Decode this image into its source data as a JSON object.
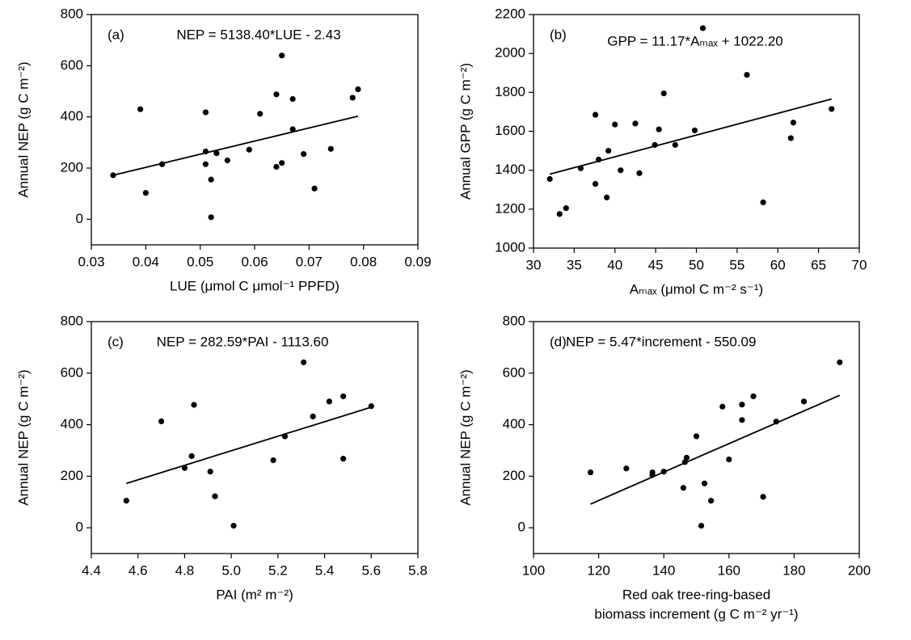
{
  "chart_data": [
    {
      "type": "scatter",
      "panel_label": "(a)",
      "equation": "NEP = 5138.40*LUE - 2.43",
      "xlabel": [
        "LUE (μmol C μmol⁻¹ PPFD)"
      ],
      "ylabel": "Annual NEP (g C m⁻²)",
      "xlim": [
        0.03,
        0.09
      ],
      "xticks": [
        0.03,
        0.04,
        0.05,
        0.06,
        0.07,
        0.08,
        0.09
      ],
      "ylim": [
        -100,
        800
      ],
      "yticks": [
        0,
        200,
        400,
        600,
        800
      ],
      "color": "#000000",
      "x": [
        0.034,
        0.039,
        0.04,
        0.043,
        0.051,
        0.051,
        0.051,
        0.052,
        0.052,
        0.053,
        0.055,
        0.059,
        0.061,
        0.064,
        0.064,
        0.065,
        0.065,
        0.067,
        0.067,
        0.069,
        0.071,
        0.074,
        0.078,
        0.079
      ],
      "values": [
        172,
        430,
        103,
        215,
        418,
        265,
        215,
        155,
        8,
        258,
        230,
        272,
        412,
        488,
        205,
        640,
        220,
        470,
        352,
        255,
        120,
        275,
        475,
        508
      ],
      "fit": {
        "x": [
          0.034,
          0.079
        ],
        "values": [
          172,
          403
        ]
      }
    },
    {
      "type": "scatter",
      "panel_label": "(b)",
      "equation": "GPP = 11.17*Aₘₐₓ + 1022.20",
      "xlabel": [
        "Aₘₐₓ (μmol C m⁻² s⁻¹)"
      ],
      "ylabel": "Annual GPP (g C m⁻²)",
      "xlim": [
        30,
        70
      ],
      "xticks": [
        30,
        35,
        40,
        45,
        50,
        55,
        60,
        65,
        70
      ],
      "ylim": [
        1000,
        2200
      ],
      "yticks": [
        1000,
        1200,
        1400,
        1600,
        1800,
        2000,
        2200
      ],
      "color": "#000000",
      "x": [
        32,
        33.2,
        34,
        35.8,
        37.6,
        37.6,
        38,
        39,
        39.2,
        40,
        40.7,
        42.5,
        43,
        44.9,
        45.4,
        46,
        47.4,
        49.8,
        50.8,
        56.2,
        58.2,
        61.6,
        61.9,
        66.6
      ],
      "values": [
        1355,
        1175,
        1205,
        1410,
        1685,
        1330,
        1455,
        1260,
        1500,
        1635,
        1400,
        1640,
        1385,
        1530,
        1610,
        1795,
        1530,
        1605,
        2130,
        1890,
        1235,
        1565,
        1645,
        1715
      ],
      "fit": {
        "x": [
          32,
          66.6
        ],
        "values": [
          1380,
          1766
        ]
      }
    },
    {
      "type": "scatter",
      "panel_label": "(c)",
      "equation": "NEP = 282.59*PAI - 1113.60",
      "xlabel": [
        "PAI (m² m⁻²)"
      ],
      "ylabel": "Annual NEP (g C m⁻²)",
      "xlim": [
        4.4,
        5.8
      ],
      "xticks": [
        4.4,
        4.6,
        4.8,
        {
          "value": 5,
          "label": "5.0"
        },
        5.2,
        5.4,
        5.6,
        5.8
      ],
      "ylim": [
        -100,
        800
      ],
      "yticks": [
        0,
        200,
        400,
        600,
        800
      ],
      "color": "#000000",
      "x": [
        4.55,
        4.7,
        4.8,
        4.83,
        4.84,
        4.91,
        4.93,
        5.01,
        5.18,
        5.23,
        5.31,
        5.35,
        5.42,
        5.48,
        5.48,
        5.6
      ],
      "values": [
        105,
        413,
        232,
        278,
        477,
        218,
        122,
        8,
        262,
        355,
        642,
        432,
        490,
        510,
        268,
        472
      ],
      "fit": {
        "x": [
          4.55,
          5.6
        ],
        "values": [
          172,
          468
        ]
      }
    },
    {
      "type": "scatter",
      "panel_label": "(d)",
      "equation": "NEP = 5.47*increment - 550.09",
      "xlabel": [
        "Red oak tree-ring-based",
        "biomass increment (g C m⁻² yr⁻¹)"
      ],
      "ylabel": "Annual NEP (g C m⁻²)",
      "xlim": [
        100,
        200
      ],
      "xticks": [
        100,
        120,
        140,
        160,
        180,
        200
      ],
      "ylim": [
        -100,
        800
      ],
      "yticks": [
        0,
        200,
        400,
        600,
        800
      ],
      "color": "#000000",
      "x": [
        117.5,
        128.5,
        136.5,
        136.5,
        140,
        146,
        146.5,
        147,
        150,
        151.5,
        152.5,
        154.5,
        158,
        160,
        164,
        164,
        167.5,
        170.5,
        174.5,
        183,
        194
      ],
      "values": [
        215,
        230,
        215,
        205,
        218,
        155,
        255,
        272,
        355,
        8,
        172,
        105,
        470,
        265,
        478,
        418,
        510,
        120,
        412,
        490,
        642
      ],
      "fit": {
        "x": [
          117.5,
          194
        ],
        "values": [
          92,
          514
        ]
      }
    }
  ]
}
